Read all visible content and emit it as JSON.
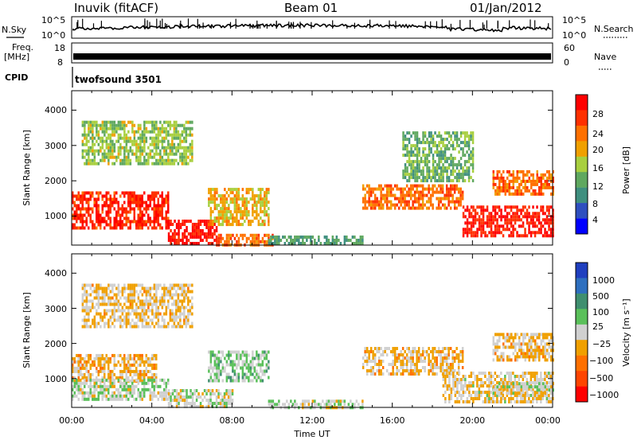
{
  "header": {
    "station": "Inuvik (fitACF)",
    "beam": "Beam 01",
    "date": "01/Jan/2012"
  },
  "strip": {
    "nsky_label": "N.Sky",
    "freq_label": "Freq.",
    "freq_unit": "[MHz]",
    "cpid_label": "CPID",
    "nsearch_label": "N.Search",
    "nave_label": "Nave",
    "nsky_ticks": [
      "10^5",
      "10^0"
    ],
    "nsearch_ticks": [
      "10^5",
      "10^0"
    ],
    "freq_ticks": [
      "18",
      "8"
    ],
    "nave_ticks": [
      "60",
      "0"
    ],
    "cpid_text": "twofsound 3501"
  },
  "axes": {
    "xlabel": "Time UT",
    "ylabel": "Slant Range [km]",
    "xticks": [
      "00:00",
      "04:00",
      "08:00",
      "12:00",
      "16:00",
      "20:00",
      "00:00"
    ],
    "yticks": [
      "1000",
      "2000",
      "3000",
      "4000"
    ]
  },
  "colorbars": {
    "power": {
      "label": "Power [dB]",
      "ticks": [
        "28",
        "24",
        "20",
        "16",
        "12",
        "8",
        "4"
      ]
    },
    "velocity": {
      "label": "Velocity [m s⁻¹]",
      "ticks": [
        "1000",
        "500",
        "100",
        "25",
        "−25",
        "−100",
        "−500",
        "−1000"
      ]
    }
  },
  "chart_data": [
    {
      "type": "heatmap",
      "name": "power",
      "x_range_hours": [
        0,
        24
      ],
      "y_range_km": [
        180,
        4550
      ],
      "clim_db": [
        0,
        30
      ],
      "colors": [
        "#0000ff",
        "#2e4fbf",
        "#3f8f7f",
        "#5fa85f",
        "#a8cf3f",
        "#f0a000",
        "#ff7000",
        "#ff3000",
        "#ff0000"
      ],
      "patches": [
        {
          "t": [
            0.0,
            4.8
          ],
          "r": [
            700,
            1700
          ],
          "v": 26
        },
        {
          "t": [
            4.8,
            7.2
          ],
          "r": [
            200,
            900
          ],
          "v": 28
        },
        {
          "t": [
            7.2,
            10.0
          ],
          "r": [
            200,
            500
          ],
          "v": 22
        },
        {
          "t": [
            6.8,
            9.8
          ],
          "r": [
            800,
            1800
          ],
          "v": 18
        },
        {
          "t": [
            9.8,
            14.5
          ],
          "r": [
            200,
            450
          ],
          "v": 10
        },
        {
          "t": [
            14.5,
            19.5
          ],
          "r": [
            1200,
            1900
          ],
          "v": 22
        },
        {
          "t": [
            19.5,
            24.0
          ],
          "r": [
            400,
            1300
          ],
          "v": 27
        },
        {
          "t": [
            21.0,
            24.0
          ],
          "r": [
            1600,
            2300
          ],
          "v": 22
        },
        {
          "t": [
            0.5,
            6.0
          ],
          "r": [
            2500,
            3700
          ],
          "v": 14
        },
        {
          "t": [
            16.5,
            20.0
          ],
          "r": [
            2000,
            3400
          ],
          "v": 12
        }
      ]
    },
    {
      "type": "heatmap",
      "name": "velocity",
      "x_range_hours": [
        0,
        24
      ],
      "y_range_km": [
        180,
        4550
      ],
      "clim_ms": [
        -1000,
        1000
      ],
      "colors": [
        "#ff0000",
        "#ff4500",
        "#ff7000",
        "#f0a000",
        "#d0d0d0",
        "#5ac05a",
        "#3f8f6f",
        "#2e6fbf",
        "#1f3fbf"
      ],
      "patches": [
        {
          "t": [
            0.0,
            4.2
          ],
          "r": [
            900,
            1700
          ],
          "v": -180
        },
        {
          "t": [
            0.0,
            4.8
          ],
          "r": [
            400,
            1000
          ],
          "v": 60
        },
        {
          "t": [
            4.8,
            8.0
          ],
          "r": [
            200,
            700
          ],
          "v": 0
        },
        {
          "t": [
            6.8,
            9.8
          ],
          "r": [
            900,
            1800
          ],
          "v": 150
        },
        {
          "t": [
            9.8,
            14.5
          ],
          "r": [
            200,
            400
          ],
          "v": 40
        },
        {
          "t": [
            14.5,
            19.5
          ],
          "r": [
            1100,
            1900
          ],
          "v": -160
        },
        {
          "t": [
            18.5,
            24.0
          ],
          "r": [
            300,
            1200
          ],
          "v": -90
        },
        {
          "t": [
            21.0,
            24.0
          ],
          "r": [
            600,
            900
          ],
          "v": 0
        },
        {
          "t": [
            21.0,
            24.0
          ],
          "r": [
            1500,
            2300
          ],
          "v": -150
        },
        {
          "t": [
            0.5,
            6.0
          ],
          "r": [
            2500,
            3700
          ],
          "v": -120
        }
      ]
    }
  ]
}
